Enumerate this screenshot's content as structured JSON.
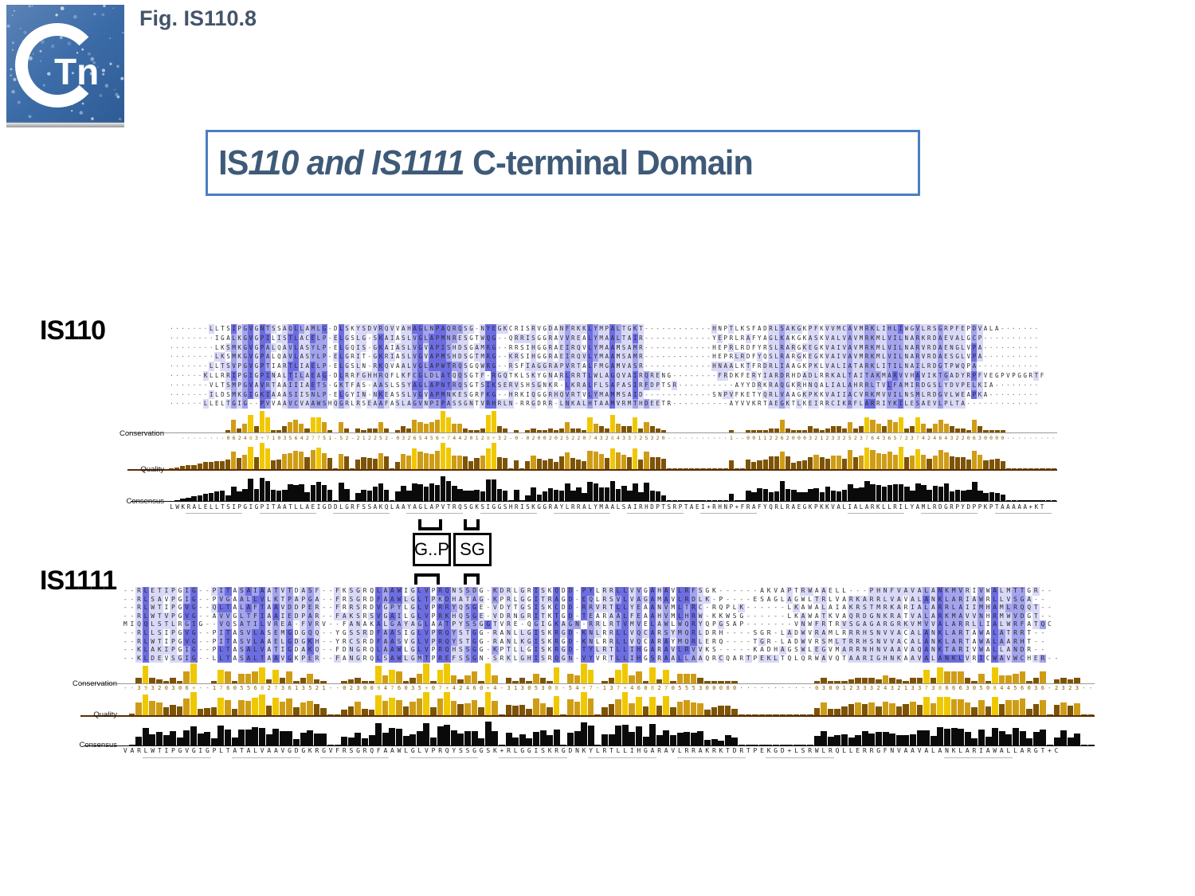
{
  "header": {
    "fig_label": "Fig. IS110.8",
    "logo_text": "Tn"
  },
  "title": {
    "prefix": "IS",
    "italic": "110 and IS1111",
    "suffix": " C-terminal Domain"
  },
  "motif_boxes": {
    "box1": "G..P",
    "box2": "SG"
  },
  "track_labels": {
    "conservation": "Conservation",
    "quality": "Quality",
    "consensus": "Consensus"
  },
  "colors": {
    "accent_border": "#4a7fc1",
    "title_text": "#3e5a78",
    "fig_text": "#44546a",
    "bar_bright": "#f0c800",
    "bar_mid": "#cf9d15",
    "bar_dark": "#7d5304",
    "digit_dim": "#8a5f00",
    "digit_hi": "#c49a00",
    "cell_light": "#d9d9f7",
    "cell_mid": "#a3a3ee",
    "cell_dark": "#6d6de2",
    "consensus_bar": "#0a0a0a",
    "logo_blue": "#3c6ca8"
  },
  "blocks": [
    {
      "id": "IS110",
      "label": "IS110",
      "rows": [
        ".......LLTSIPGVGNTSSAQLLAMLG-DLSKYSDVRQVVAHAGLNPAQRQSG-NYEGKCRISRVGDANFRKKLYMPALTGKT------------HNPTLKSFADRLSAKGKPFKVVMCAVMRKLIHLIWGVLRSGRPFEPDVALA-......",
        "........IGALKGVGPILISTLACELP-ELGSLG-SKAIASLVGLAPMNRESGTWQG--QRRISGGRAVVREALYMAALTAIR------------YEPRLRAFYAGLKAKGKASKVALVAVMRKMLVILNARKRDAEVALGCP-.........",
        "........LKSMKGVGPALQAVLASYLP-ELGQIS-GKAIASLVGVAPISHDSGAMRG--RRSIHGGRAEIRQVLYMAAMSAMR------------HEPRLRDFYRSLRARGKEGKVAIVAVMRKMLVILNARVRDAENGLVPA-.........",
        "........LKSMKGVGPALQAVLASYLP-ELGRIT-GKRIASLVGVAPMSHDSGTMRG--KRSIHGGRAEIRQVLYMAAMSAMR------------HEPRLRDFYQSLRARGKEGKVAIVAVMRKMLVILNARVRDAESGLVPA-.........",
        ".......LLTSVPGVGPTIARTLIAELP-ELGSLN-RKQVAALVGLAPWTRQSGQWRG--RSFIAGGRAPVRTALFMGAMVASR------------HNAALKTFRDRLIAAGKPKLVALIATARKLITILNAILRDGTPWQPA-..........",
        "......KLLRRIPGIGPINALTILAEAG-DLRRFGHHRQFLKFCGLDLATQQSGTF-RGQTKLSKYGNARLRRTLWLAGQVAIRQRENG--------FRDKFERYIARDRHDADLRRKALTAITAKMARVVHAVIKTGADYRPFVEGPVPGGRTF",
        ".......VLTSMPGVAVRTAAIIIAETS-GKTFAS-AASLSSYAGLAPNTRQSGTSIKSERVSHSGNKR-LKRALFLSAFASIRFDPTSR----------AYYDRKRAQGKRHNQALIALAHRRLTVLFAMIRDGSLYDVPELKIA-.......",
        ".......ILDSMKGIGKIAAASIISNLP-ELGYIN-NKEASSLVGVAPMNKESGRFKG--HRKIQGGRHQVRTVLYMAMMSAID------------SNPVFKETYQRLVAAGKPKKVAIIACVRKMVVILNSMLRDGVLWEAPKA-........",
        "......LLELTGIG--PVVAAVCVAAWSHQGRLRSEAAFASLAGVNPIPASSGNTVRHRLN-RRGDRR-LNKALHTAAMVRMTHDEETR----------AYVVKRTAEGKTLKEIRRCIKRFLARRIYKILESAEVLPLTA-............"
      ],
      "conservation": "  ........062483+710356427751-52-212252-03265456+74420128+32-0-0200202522074328433725320...........1--0011226200032123325237643657237424643220630000.........",
      "consensus": "LWKRALELLTSIPGIGPITAATLLAEIGDDLGRFSSAKQLAAYAGLAPVTRQSGKSIGGSHRISKGGRAYLRRALYMAALSAIRHDPTSRPTAEI+RHNP+FRAFYQRLRAEGKPKKVALIALARKLLRILYAMLRDGRPYDPPKPTAAAAA+KT"
    },
    {
      "id": "IS1111",
      "label": "IS1111",
      "rows": [
        "--RLETIPGIG--PITASAIAATVTDASF--FKSGRQLAAWIGLVPRQNSSDG-KDRLGRISKQDD-PYLRRLLVVGAHAVLRFSGK------AKVAPTRWAAELL---PHNFVAVALANKMVRIVWALMTTGR--",
        "--RLSAVPGIG--PVGAALLVLKTPAPGA--FRSGRDFAAWLGLTPKDHATAG-KPRLGGITRAGD-EQLRSVLVAGAMAVLRDLK-P----ESAGLAGWLTRLVARKARRLVAVALANKLARIAWRLLVSGA--",
        "--RLWTIPGVG--QLTALAFTAAVDDPER--FRRSRDVGPYLGLVPRRYQSGE-VDYTGSISKCDD-RRVRTLLYEAANVMLTRC-RQPLK------LKAWALAIAKRSTMRKARIALARRLAIIMHAMLRQQT--",
        "--RLWTVPGVG--AVVGLTFIAAIEDPAR--FAKSRSVGAILGLVPRKHQSGE-VDRNGRITKTGD-TEARAALFEAAHVMLHRW-KKWSG------LKAWATKVAQRDGNKRATVALARKMAVVNHRMWVDGT--",
        "MIQQLSTLRGIG--VQSATILVREA-FVRV--FANAKALGAYAGLAATPYSSGGTVRE-QGIGKAGN-RRLRTVMVELAWLWQRYQPGSAP-------VNWFRTRVSGAGARGRKVMVVALARRLLIALWRFATQC",
        "--RLLSIPGVG--PITASVLASEMGDGQQ--YGSSRDFAASIGLVPRQYSTGG-RANLLGISKRGD-KNLRRLLVQCARSYMQRLDRH----SGR-LADWVRAMLRRRHSNVVACALANKLARTAWALATRRT--",
        "--RLWTIPGVG--PITASVLAAELGDGKH--YRCSRDFAASVGLVPRQYSTGG-RANLKGISKRGD-KNLRRLLVQCARAYMQRLERQ----TGR-LADWVRSMLTRRHSNVVACALANKLARTAWALAARHT--",
        "--KLAKIPGIG--PLTASALVATIGDAKQ--FDNGRQLAAWLGLVPRQHSSGG-KPTLLGISKRGD-TYLRTLLIHGARAVLRVVKS-----KADHAGSWLEGVMARRNHNVAAVAQANKTARIVWALLANDR--",
        "--KLDEVSGIG--LLTASALTAAVGKPER--FANGRQLSAWLGMTPREFSSGN-SRKLGHISRQGN-VYVRTLLIHGSRAALLAAQRCQARTPEKLTQLQRWAVQTAARIGHNKAAVALANKLVRICWAVWCHER--"
      ],
      "conservation": "--39320306+--17605568273613521--023009476035+07+42460+4-31305308-54+7-137+4608270555300000...........0300123332432133738666305084456036-2323--",
      "consensus": "VARLWTIPGVGIGPLTATALVAAVGDGKRGVFRSGRQFAAWLGLVPRQYSSGGSK+RLGGISKRGDNKYLRTLLIHGARAVLRRAKRKTDRTPEKGD+LSRWLRQLLERRGFNVAAVALANKLARIAWALLARGT+C"
    }
  ]
}
